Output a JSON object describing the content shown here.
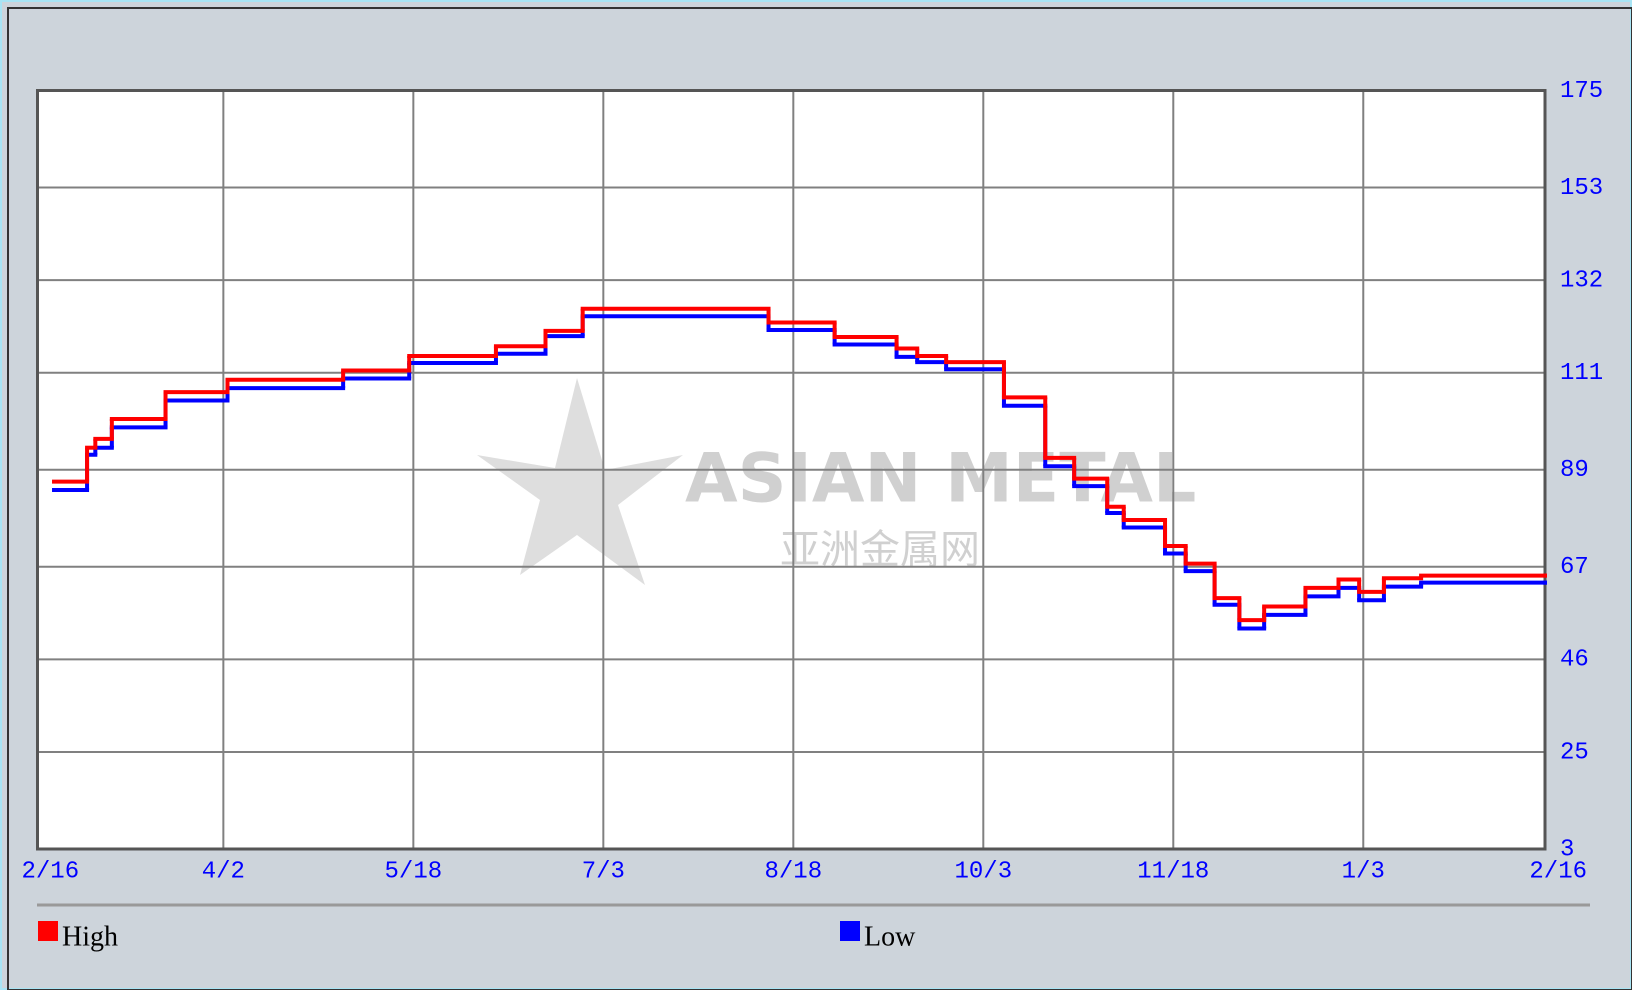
{
  "chart_data": {
    "type": "line",
    "watermark": "ASIAN METAL",
    "watermark_sub": "亚洲金属网",
    "x": [
      "2/20",
      "2/28",
      "3/2",
      "3/6",
      "3/19",
      "4/3",
      "5/1",
      "5/17",
      "6/7",
      "6/19",
      "6/28",
      "8/12",
      "8/28",
      "9/12",
      "9/17",
      "9/24",
      "10/8",
      "10/18",
      "10/25",
      "11/2",
      "11/6",
      "11/16",
      "11/21",
      "11/28",
      "12/4",
      "12/10",
      "12/20",
      "12/28",
      "1/2",
      "1/8",
      "1/17",
      "2/16"
    ],
    "series": [
      {
        "name": "High",
        "color": "#ff0000",
        "values": [
          86.3,
          94,
          96,
          100.5,
          106.6,
          109.4,
          111.5,
          114.8,
          117,
          120.5,
          125.5,
          122.4,
          119.1,
          116.5,
          114.8,
          113.4,
          105.4,
          91.7,
          87,
          80.6,
          77.6,
          71.7,
          67.7,
          59.9,
          54.9,
          58,
          62.2,
          64.1,
          61.3,
          64.4,
          65,
          65
        ]
      },
      {
        "name": "Low",
        "color": "#0000ff",
        "values": [
          84.4,
          92.4,
          94,
          98.6,
          104.7,
          107.5,
          109.7,
          113.2,
          115.3,
          119.3,
          123.8,
          120.7,
          117.4,
          114.6,
          113.4,
          111.8,
          103.5,
          89.8,
          85.3,
          79.2,
          75.9,
          70,
          66,
          58.4,
          53,
          56.1,
          60.3,
          62.2,
          59.4,
          62.5,
          63.4,
          63.4
        ]
      }
    ],
    "xticks": [
      "2/16",
      "4/2",
      "5/18",
      "7/3",
      "8/18",
      "10/3",
      "11/18",
      "1/3",
      "2/16"
    ],
    "ylim": [
      3,
      175
    ],
    "yticks": [
      3,
      25,
      46,
      67,
      89,
      111,
      132,
      153,
      175
    ],
    "grid": true
  }
}
